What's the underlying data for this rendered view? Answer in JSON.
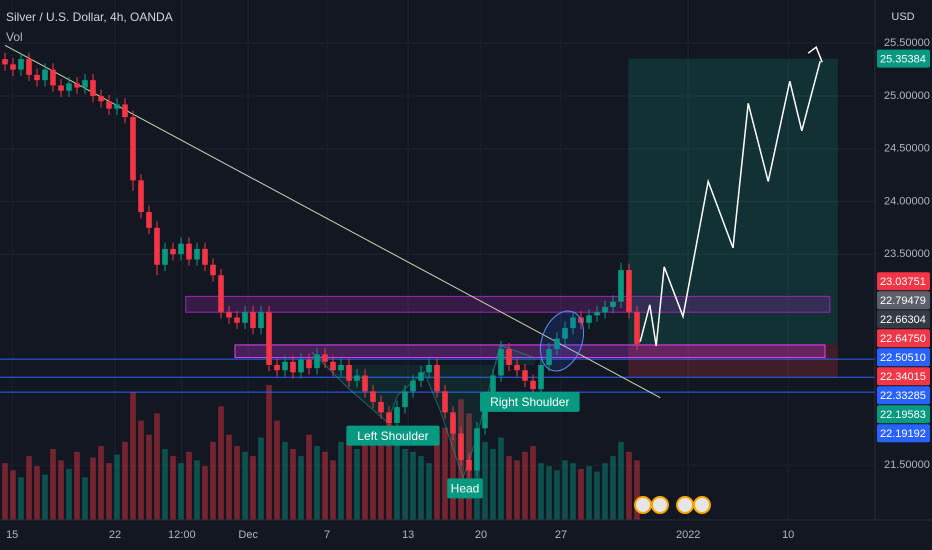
{
  "chart_data": {
    "type": "candlestick",
    "title": "Silver / U.S. Dollar, 4h, OANDA",
    "indicator": "Vol",
    "currency": "USD",
    "up_color": "#089981",
    "down_color": "#f23645",
    "grid": true,
    "ylim": [
      20.98,
      25.91
    ],
    "xlim": [
      0,
      108.75
    ],
    "yticks": [
      {
        "value": 25.5,
        "label": "25.50000"
      },
      {
        "value": 25.0,
        "label": "25.00000"
      },
      {
        "value": 24.5,
        "label": "24.50000"
      },
      {
        "value": 24.0,
        "label": "24.00000"
      },
      {
        "value": 23.5,
        "label": "23.50000"
      },
      {
        "value": 21.5,
        "label": "21.50000"
      }
    ],
    "xticks": [
      {
        "value": 0.9,
        "label": "15"
      },
      {
        "value": 13.75,
        "label": "22"
      },
      {
        "value": 22.1,
        "label": "12:00"
      },
      {
        "value": 30.4,
        "label": "Dec"
      },
      {
        "value": 40.25,
        "label": "7"
      },
      {
        "value": 50.4,
        "label": "13"
      },
      {
        "value": 59.5,
        "label": "20"
      },
      {
        "value": 69.5,
        "label": "27"
      },
      {
        "value": 85.4,
        "label": "2022"
      },
      {
        "value": 97.9,
        "label": "10"
      }
    ],
    "open": [
      25.35,
      25.3,
      25.25,
      25.35,
      25.2,
      25.15,
      25.25,
      25.1,
      25.05,
      25.12,
      25.08,
      25.15,
      25.0,
      24.95,
      24.88,
      24.92,
      24.8,
      24.2,
      23.9,
      23.75,
      23.4,
      23.55,
      23.5,
      23.6,
      23.45,
      23.55,
      23.4,
      23.3,
      22.95,
      22.9,
      22.85,
      22.95,
      22.8,
      22.95,
      22.45,
      22.4,
      22.48,
      22.38,
      22.5,
      22.42,
      22.55,
      22.48,
      22.4,
      22.45,
      22.3,
      22.35,
      22.2,
      22.1,
      22.0,
      21.9,
      22.05,
      22.2,
      22.3,
      22.38,
      22.45,
      22.2,
      22.0,
      21.8,
      21.55,
      21.45,
      21.85,
      22.1,
      22.35,
      22.6,
      22.45,
      22.4,
      22.3,
      22.22,
      22.45,
      22.6,
      22.7,
      22.8,
      22.9,
      22.85,
      22.92,
      22.95,
      23.0,
      23.05,
      23.35,
      22.95
    ],
    "high": [
      25.41,
      25.36,
      25.41,
      25.41,
      25.26,
      25.31,
      25.31,
      25.16,
      25.18,
      25.18,
      25.21,
      25.21,
      25.06,
      25.01,
      24.98,
      24.98,
      24.86,
      24.26,
      23.96,
      23.81,
      23.61,
      23.61,
      23.66,
      23.66,
      23.61,
      23.61,
      23.46,
      23.36,
      23.01,
      22.96,
      23.01,
      23.01,
      23.01,
      23.01,
      22.51,
      22.54,
      22.54,
      22.56,
      22.56,
      22.61,
      22.61,
      22.54,
      22.51,
      22.51,
      22.41,
      22.41,
      22.26,
      22.16,
      22.06,
      22.11,
      22.26,
      22.36,
      22.44,
      22.51,
      22.51,
      22.26,
      22.06,
      21.86,
      21.61,
      21.91,
      22.16,
      22.41,
      22.68,
      22.66,
      22.51,
      22.46,
      22.36,
      22.51,
      22.66,
      22.76,
      22.86,
      22.96,
      22.96,
      22.98,
      23.01,
      23.06,
      23.11,
      23.42,
      23.41,
      23.01
    ],
    "low": [
      25.24,
      25.19,
      25.19,
      25.14,
      25.09,
      25.09,
      25.04,
      24.99,
      24.99,
      25.02,
      25.02,
      24.94,
      24.89,
      24.82,
      24.82,
      24.74,
      24.1,
      23.84,
      23.69,
      23.3,
      23.34,
      23.44,
      23.44,
      23.39,
      23.39,
      23.34,
      23.24,
      22.89,
      22.84,
      22.79,
      22.79,
      22.74,
      22.74,
      22.39,
      22.34,
      22.34,
      22.32,
      22.32,
      22.36,
      22.36,
      22.42,
      22.34,
      22.34,
      22.24,
      22.24,
      22.14,
      22.04,
      21.94,
      21.82,
      21.84,
      21.99,
      22.14,
      22.24,
      22.32,
      22.14,
      21.94,
      21.74,
      21.49,
      21.38,
      21.39,
      21.79,
      22.04,
      22.29,
      22.39,
      22.34,
      22.24,
      22.16,
      22.16,
      22.39,
      22.54,
      22.64,
      22.74,
      22.79,
      22.79,
      22.86,
      22.89,
      22.94,
      22.99,
      22.89,
      22.59
    ],
    "close": [
      25.3,
      25.25,
      25.35,
      25.2,
      25.15,
      25.25,
      25.1,
      25.05,
      25.12,
      25.08,
      25.15,
      25.0,
      24.95,
      24.88,
      24.92,
      24.8,
      24.2,
      23.9,
      23.75,
      23.4,
      23.55,
      23.5,
      23.6,
      23.45,
      23.55,
      23.4,
      23.3,
      22.95,
      22.9,
      22.85,
      22.95,
      22.8,
      22.95,
      22.45,
      22.4,
      22.48,
      22.38,
      22.5,
      22.42,
      22.55,
      22.48,
      22.4,
      22.45,
      22.3,
      22.35,
      22.2,
      22.1,
      22.0,
      21.9,
      22.05,
      22.2,
      22.3,
      22.38,
      22.45,
      22.2,
      22.0,
      21.8,
      21.55,
      21.45,
      21.85,
      22.1,
      22.35,
      22.6,
      22.45,
      22.4,
      22.3,
      22.22,
      22.45,
      22.6,
      22.7,
      22.8,
      22.9,
      22.85,
      22.92,
      22.95,
      23.0,
      23.05,
      23.35,
      22.95,
      22.65
    ],
    "volume": [
      40,
      35,
      30,
      45,
      38,
      32,
      50,
      42,
      36,
      48,
      30,
      44,
      52,
      40,
      46,
      55,
      90,
      70,
      60,
      75,
      50,
      45,
      40,
      48,
      42,
      38,
      55,
      80,
      60,
      52,
      48,
      45,
      58,
      95,
      70,
      55,
      50,
      45,
      60,
      52,
      48,
      42,
      55,
      60,
      50,
      58,
      62,
      65,
      72,
      55,
      50,
      48,
      45,
      40,
      60,
      65,
      70,
      85,
      75,
      62,
      55,
      50,
      58,
      45,
      42,
      48,
      52,
      40,
      38,
      35,
      42,
      40,
      36,
      38,
      34,
      40,
      45,
      55,
      48,
      42
    ],
    "price_labels": [
      {
        "value": 25.35384,
        "label": "25.35384",
        "color": "#089981"
      },
      {
        "value": 23.03751,
        "label": "23.03751",
        "color": "#f23645"
      },
      {
        "value": 22.79479,
        "label": "22.79479",
        "color": "#5d606b"
      },
      {
        "value": 22.66304,
        "label": "22.66304",
        "color": "#363a45"
      },
      {
        "value": 22.6475,
        "label": "22.64750",
        "color": "#f23645"
      },
      {
        "value": 22.5051,
        "label": "22.50510",
        "color": "#2962ff"
      },
      {
        "value": 22.34015,
        "label": "22.34015",
        "color": "#f23645"
      },
      {
        "value": 22.33285,
        "label": "22.33285",
        "color": "#2962ff"
      },
      {
        "value": 22.19583,
        "label": "22.19583",
        "color": "#089981"
      },
      {
        "value": 22.19192,
        "label": "22.19192",
        "color": "#2962ff"
      }
    ],
    "hlines": [
      22.5051,
      22.33285,
      22.19192
    ],
    "hline_color": "#2962ff",
    "zones": [
      {
        "x": [
          22.6,
          103.1
        ],
        "y": [
          22.95,
          23.1
        ],
        "color": "#9c27b0"
      },
      {
        "x": [
          28.75,
          102.5
        ],
        "y": [
          22.52,
          22.64
        ],
        "color": "#e040fb"
      }
    ],
    "position": {
      "x": [
        77.9,
        104.1
      ],
      "target": 25.35384,
      "entry": 22.6475,
      "stop": 22.33285
    },
    "trendline": {
      "x": [
        0,
        81.9
      ],
      "y": [
        25.48,
        22.14
      ]
    },
    "projection": {
      "x": [
        79.4,
        80.6,
        81.4,
        82.4,
        84.75,
        87.9,
        91.0,
        92.9,
        95.4,
        98.1,
        99.6,
        101.9
      ],
      "y": [
        22.67,
        23.02,
        22.63,
        23.38,
        22.91,
        24.19,
        23.56,
        24.93,
        24.19,
        25.14,
        24.67,
        25.33
      ]
    },
    "annotations": [
      {
        "text": "Left Shoulder",
        "x": 48.5,
        "y": 21.78
      },
      {
        "text": "Head",
        "x": 57.5,
        "y": 21.28
      },
      {
        "text": "Right Shoulder",
        "x": 65.6,
        "y": 22.1
      }
    ]
  }
}
